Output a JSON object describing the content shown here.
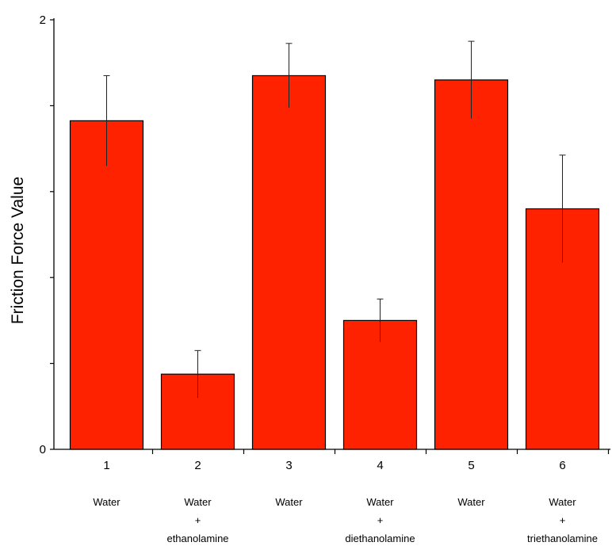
{
  "chart_data": {
    "type": "bar",
    "ylabel": "Friction Force Value",
    "ylim": [
      0,
      2
    ],
    "yticks": [
      0,
      0.4,
      0.8,
      1.2,
      1.6,
      2
    ],
    "ytick_labels": [
      "0",
      "",
      "",
      "",
      "",
      "2"
    ],
    "categories": [
      "1",
      "2",
      "3",
      "4",
      "5",
      "6"
    ],
    "category_descriptions": [
      [
        "Water"
      ],
      [
        "Water",
        "+",
        "ethanolamine"
      ],
      [
        "Water"
      ],
      [
        "Water",
        "+",
        "diethanolamine"
      ],
      [
        "Water"
      ],
      [
        "Water",
        "+",
        "triethanolamine"
      ]
    ],
    "values": [
      1.53,
      0.35,
      1.74,
      0.6,
      1.72,
      1.12
    ],
    "errors": [
      0.21,
      0.11,
      0.15,
      0.1,
      0.18,
      0.25
    ],
    "bar_color": "#ff2200",
    "grid": false,
    "legend": "none"
  }
}
